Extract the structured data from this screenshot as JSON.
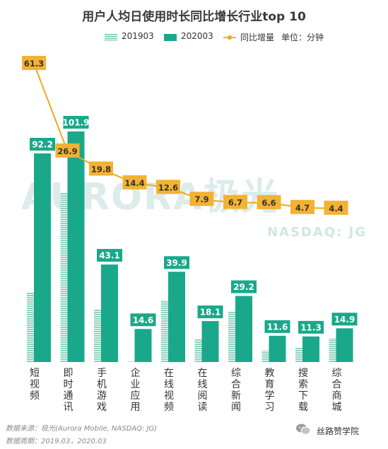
{
  "title": "用户人均日使用时长同比增长行业top 10",
  "legend": {
    "s2019": "201903",
    "s2020": "202003",
    "growth": "同比增量"
  },
  "unit": "单位：分钟",
  "watermark": {
    "main": "AURORA极光",
    "sub": "NASDAQ: JG"
  },
  "footer": {
    "source": "数据来源：极光(Aurora Mobile, NASDAQ: JG)",
    "period": "数据周期：2019.03，2020.03"
  },
  "brand": "丝路赞学院",
  "colors": {
    "s2019": "#8fd3bf",
    "s2020": "#1aa88a",
    "growth": "#f2b233",
    "line": "#f0a81c"
  },
  "chart_data": {
    "type": "bar",
    "categories": [
      "短视频",
      "即时通讯",
      "手机游戏",
      "企业应用",
      "在线视频",
      "在线阅读",
      "综合新闻",
      "教育学习",
      "搜索下载",
      "综合商城"
    ],
    "series": [
      {
        "name": "201903",
        "values": [
          30.9,
          75.0,
          23.3,
          0.2,
          27.3,
          10.2,
          22.5,
          5.0,
          6.6,
          10.5
        ]
      },
      {
        "name": "202003",
        "values": [
          92.2,
          101.9,
          43.1,
          14.6,
          39.9,
          18.1,
          29.2,
          11.6,
          11.3,
          14.9
        ]
      }
    ],
    "line_series": {
      "name": "同比增量",
      "values": [
        61.3,
        26.9,
        19.8,
        14.4,
        12.6,
        7.9,
        6.7,
        6.6,
        4.7,
        4.4
      ]
    },
    "legend": "top"
  }
}
